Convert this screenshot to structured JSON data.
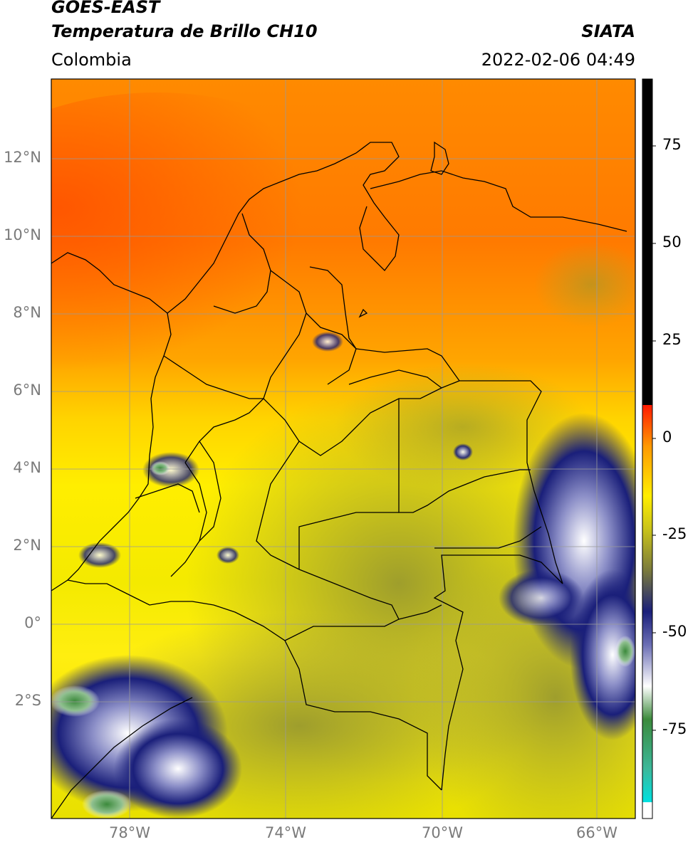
{
  "header": {
    "title_line1": "GOES-EAST",
    "title_line2": "Temperatura de Brillo CH10",
    "region": "Colombia",
    "source": "SIATA",
    "timestamp": "2022-02-06 04:49"
  },
  "map": {
    "lat_labels": [
      "12°N",
      "10°N",
      "8°N",
      "6°N",
      "4°N",
      "2°N",
      "0°",
      "2°S"
    ],
    "lon_labels": [
      "78°W",
      "74°W",
      "70°W",
      "66°W"
    ],
    "gridline_color": "#9a9a9a",
    "border_color": "#000000"
  },
  "colorbar": {
    "tick_labels": [
      "75",
      "50",
      "25",
      "0",
      "-25",
      "-50",
      "-75"
    ],
    "colors": {
      "warm_black": "#000000",
      "red": "#ff1a00",
      "orange": "#ff9900",
      "yellow": "#ffee00",
      "olive": "#9d9d2a",
      "navy": "#1a1f7a",
      "white": "#ffffff",
      "green": "#3c8a3c",
      "teal": "#3cb89a",
      "cyan": "#00e0e0"
    }
  }
}
